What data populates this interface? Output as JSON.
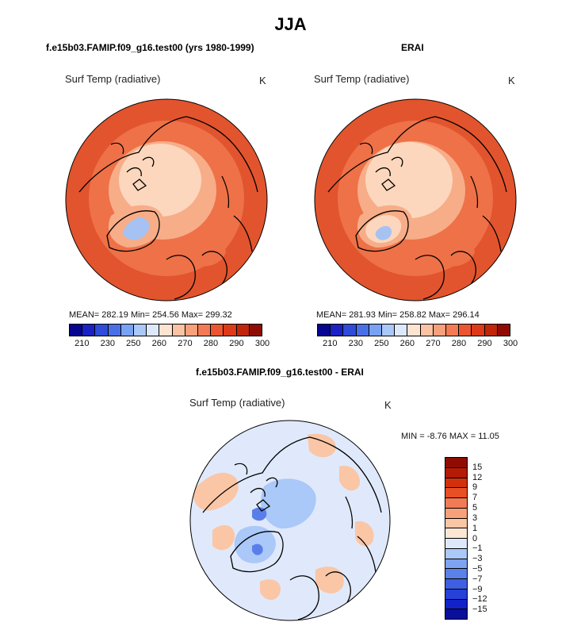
{
  "season": "JJA",
  "panels": [
    {
      "title": "f.e15b03.FAMIP.f09_g16.test00 (yrs 1980-1999)",
      "variable": "Surf Temp (radiative)",
      "units": "K",
      "stats": "MEAN= 282.19  Min= 254.56  Max= 299.32"
    },
    {
      "title": "ERAI",
      "variable": "Surf Temp (radiative)",
      "units": "K",
      "stats": "MEAN= 281.93  Min= 258.82  Max= 296.14"
    },
    {
      "title": "f.e15b03.FAMIP.f09_g16.test00 - ERAI",
      "variable": "Surf Temp (radiative)",
      "units": "K",
      "stats": "MIN =    -8.76  MAX =    11.05"
    }
  ],
  "colorbar_abs": {
    "colors": [
      "#08058f",
      "#1a22c4",
      "#2f4bd8",
      "#4a70e6",
      "#79a2f2",
      "#aac8f8",
      "#dde9fb",
      "#fde4d0",
      "#f9c3a4",
      "#f6a07c",
      "#f27b55",
      "#ec5532",
      "#dd3a19",
      "#c0260c",
      "#8e0c04"
    ],
    "ticks": [
      "210",
      "230",
      "250",
      "260",
      "270",
      "280",
      "290",
      "300"
    ]
  },
  "colorbar_diff": {
    "colors": [
      "#8e0c04",
      "#b41a06",
      "#d3310e",
      "#e94f24",
      "#f27b55",
      "#f7a07a",
      "#fac6a6",
      "#fde7d4",
      "#dde9fb",
      "#aac8f8",
      "#7ea3f1",
      "#5a80ea",
      "#3f5fe2",
      "#2640d8",
      "#1222c8",
      "#0a0f9a"
    ],
    "ticks": [
      "15",
      "12",
      "9",
      "7",
      "5",
      "3",
      "1",
      "0",
      "−1",
      "−3",
      "−5",
      "−7",
      "−9",
      "−12",
      "−15"
    ]
  },
  "map_colors": {
    "outer": "#e2542d",
    "mid": "#ee7148",
    "inner": "#f7ad88",
    "pole": "#fcd7be",
    "cold": "#a5c2f2",
    "diff_bg": "#dfe9fb",
    "diff_warm": "#fac6a6",
    "diff_cool": "#aac8f8",
    "diff_strong": "#5a7ee9"
  }
}
